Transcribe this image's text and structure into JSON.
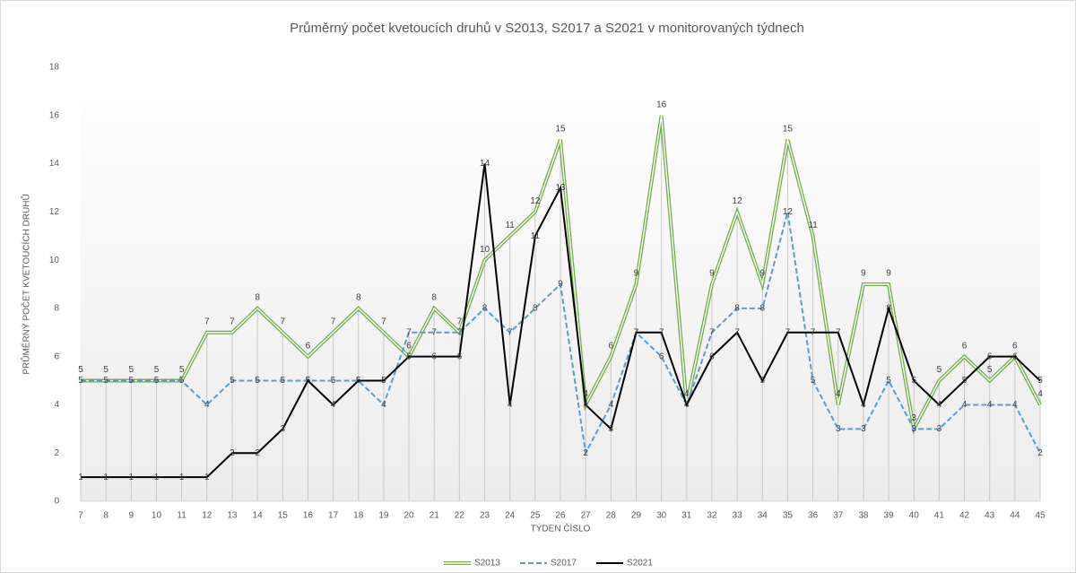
{
  "chart_data": {
    "type": "line",
    "title": "Průměrný počet kvetoucích druhů v S2013, S2017 a S2021 v monitorovaných týdnech",
    "x_label": "TÝDEN ČÍSLO",
    "y_label": "PRŮMĚRNÝ POČET KVETOUCÍCH DRUHŮ",
    "categories": [
      7,
      8,
      9,
      10,
      11,
      12,
      13,
      14,
      15,
      16,
      17,
      18,
      19,
      20,
      21,
      22,
      23,
      24,
      25,
      26,
      27,
      28,
      29,
      30,
      31,
      32,
      33,
      34,
      35,
      36,
      37,
      38,
      39,
      40,
      41,
      42,
      43,
      44,
      45
    ],
    "series": [
      {
        "name": "S2013",
        "color": "#70ad47",
        "style": "double",
        "values": [
          5,
          5,
          5,
          5,
          5,
          7,
          7,
          8,
          7,
          6,
          7,
          8,
          7,
          6,
          8,
          7,
          10,
          11,
          12,
          15,
          4,
          6,
          9,
          16,
          4,
          9,
          12,
          9,
          15,
          11,
          4,
          9,
          9,
          3,
          5,
          6,
          5,
          6,
          4
        ]
      },
      {
        "name": "S2017",
        "color": "#5b9bd5",
        "style": "dashed",
        "values": [
          5,
          5,
          5,
          5,
          5,
          4,
          5,
          5,
          5,
          5,
          5,
          5,
          4,
          7,
          7,
          7,
          8,
          7,
          8,
          9,
          2,
          4,
          7,
          6,
          4,
          7,
          8,
          8,
          12,
          5,
          3,
          3,
          5,
          3,
          3,
          4,
          4,
          4,
          2
        ]
      },
      {
        "name": "S2021",
        "color": "#000000",
        "style": "solid",
        "values": [
          1,
          1,
          1,
          1,
          1,
          1,
          2,
          2,
          3,
          5,
          4,
          5,
          5,
          6,
          6,
          6,
          14,
          4,
          11,
          13,
          4,
          3,
          7,
          7,
          4,
          6,
          7,
          5,
          7,
          7,
          7,
          4,
          8,
          5,
          4,
          5,
          6,
          6,
          5
        ]
      }
    ],
    "ylim": [
      0,
      18
    ],
    "yticks": [
      0,
      2,
      4,
      6,
      8,
      10,
      12,
      14,
      16,
      18
    ],
    "drop_lines": true,
    "legend": "bottom"
  }
}
